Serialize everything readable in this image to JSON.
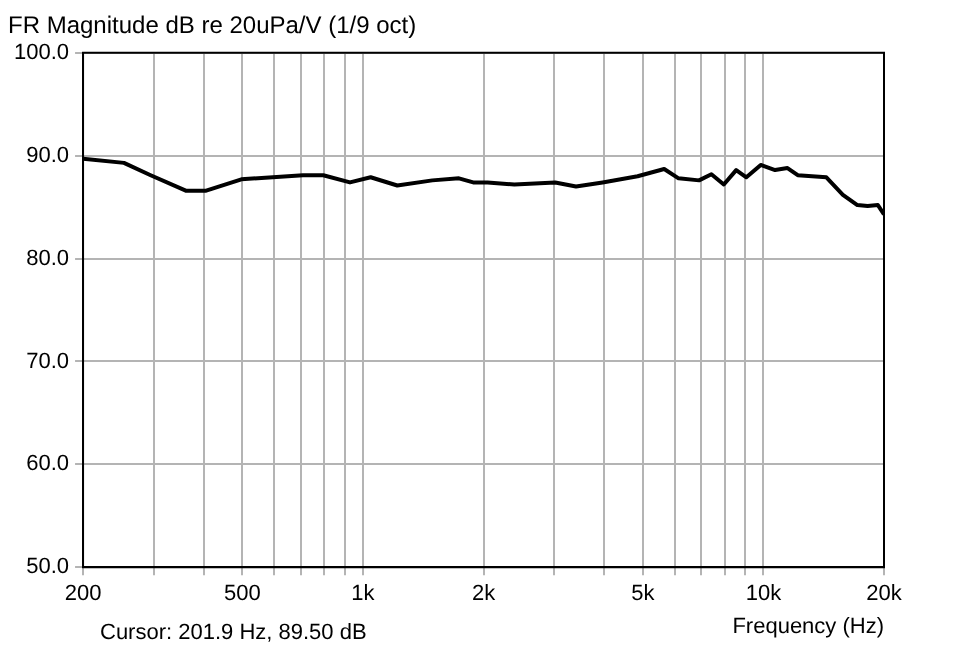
{
  "chart_data": {
    "type": "line",
    "title": "FR Magnitude dB re 20uPa/V (1/9 oct)",
    "xlabel": "Frequency (Hz)",
    "annotations": [
      "Cursor: 201.9 Hz, 89.50 dB"
    ],
    "log": "x",
    "grid": true,
    "legend": false,
    "marker": "none",
    "line_style": "solid",
    "xlim": [
      200,
      20000
    ],
    "xticks": [
      200,
      {
        "value": 300,
        "label": null
      },
      {
        "value": 400,
        "label": null
      },
      500,
      {
        "value": 600,
        "label": null
      },
      {
        "value": 700,
        "label": null
      },
      {
        "value": 800,
        "label": null
      },
      {
        "value": 900,
        "label": null
      },
      {
        "value": 1000,
        "label": "1k"
      },
      {
        "value": 2000,
        "label": "2k"
      },
      {
        "value": 3000,
        "label": null
      },
      {
        "value": 4000,
        "label": null
      },
      {
        "value": 5000,
        "label": "5k"
      },
      {
        "value": 6000,
        "label": null
      },
      {
        "value": 7000,
        "label": null
      },
      {
        "value": 8000,
        "label": null
      },
      {
        "value": 9000,
        "label": null
      },
      {
        "value": 10000,
        "label": "10k"
      },
      {
        "value": 20000,
        "label": "20k"
      }
    ],
    "ylim": [
      50,
      100
    ],
    "yticks": [
      {
        "value": 50,
        "label": "50.0"
      },
      {
        "value": 60,
        "label": "60.0"
      },
      {
        "value": 70,
        "label": "70.0"
      },
      {
        "value": 80,
        "label": "80.0"
      },
      {
        "value": 90,
        "label": "90.0"
      },
      {
        "value": 100,
        "label": "100.0"
      }
    ],
    "series": [
      {
        "color": "#000000",
        "x": [
          200,
          253,
          295,
          361,
          406,
          497,
          708,
          796,
          928,
          1045,
          1218,
          1490,
          1736,
          1885,
          2047,
          2388,
          3020,
          3404,
          3966,
          4850,
          5651,
          6138,
          6905,
          7414,
          7962,
          8549,
          9064,
          9846,
          10692,
          11482,
          12180,
          14360,
          15790,
          17160,
          18200,
          19310,
          20000
        ],
        "values": [
          89.7,
          89.3,
          88.1,
          86.6,
          86.6,
          87.7,
          88.1,
          88.1,
          87.4,
          87.9,
          87.1,
          87.6,
          87.8,
          87.4,
          87.4,
          87.2,
          87.4,
          87.0,
          87.4,
          88.0,
          88.7,
          87.8,
          87.6,
          88.2,
          87.2,
          88.6,
          87.9,
          89.1,
          88.6,
          88.8,
          88.1,
          87.9,
          86.2,
          85.2,
          85.1,
          85.2,
          84.3
        ]
      }
    ]
  }
}
